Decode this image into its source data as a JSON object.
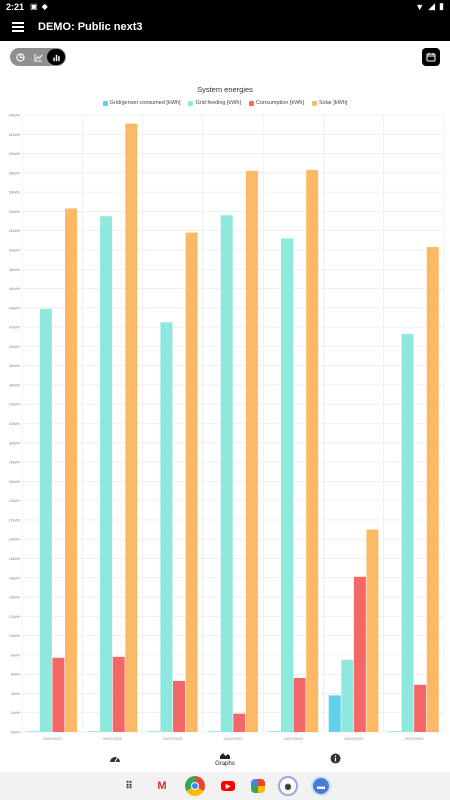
{
  "status_bar": {
    "time": "2:21"
  },
  "app_bar": {
    "title": "DEMO: Public next3"
  },
  "view_toggles": [
    "pie-chart",
    "line-chart",
    "bar-chart"
  ],
  "nav": {
    "items": [
      {
        "label": "",
        "icon": "gauge-icon"
      },
      {
        "label": "Graphs",
        "icon": "area-chart-icon"
      },
      {
        "label": "",
        "icon": "info-icon"
      }
    ]
  },
  "colors": {
    "grid": "#5fd1ec",
    "feeding": "#8ee8de",
    "consumption": "#f46767",
    "solar": "#fbb865"
  },
  "chart_data": {
    "type": "bar",
    "title": "System energies",
    "categories": [
      "19/07/2023",
      "20/07/2023",
      "21/07/2023",
      "22/07/2023",
      "23/07/2023",
      "24/07/2023",
      "25/07/2023"
    ],
    "series": [
      {
        "name": "Grid/genset consumed [kWh]",
        "values": [
          0,
          0,
          0,
          0,
          0,
          3.8,
          0
        ]
      },
      {
        "name": "Grid feeding [kWh]",
        "values": [
          43.9,
          53.5,
          42.5,
          53.6,
          51.2,
          7.5,
          41.3
        ]
      },
      {
        "name": "Consumption [kWh]",
        "values": [
          7.7,
          7.8,
          5.3,
          1.9,
          5.6,
          16.1,
          4.9
        ]
      },
      {
        "name": "Solar [kWh]",
        "values": [
          54.3,
          63.1,
          51.8,
          58.2,
          58.3,
          21,
          50.3
        ]
      }
    ],
    "ylim": [
      0,
      64
    ],
    "ytick_step": 2,
    "ytick_suffix": "kWh",
    "grid": true,
    "legend": "top"
  }
}
